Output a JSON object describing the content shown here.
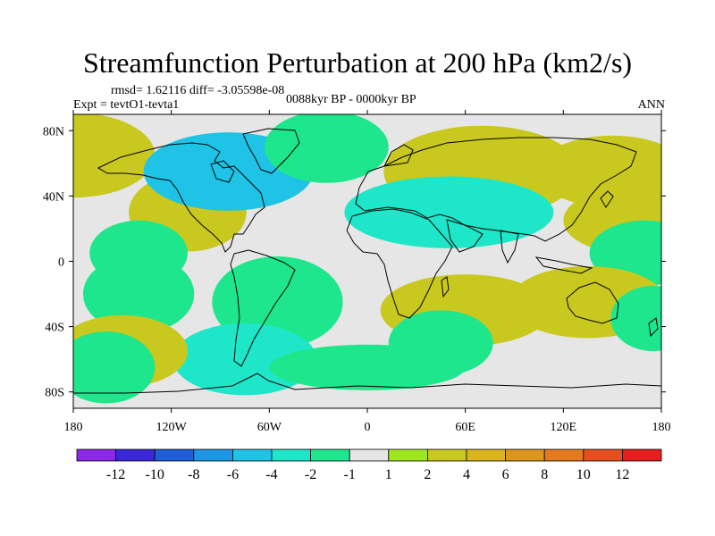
{
  "header": {
    "title": "Streamfunction Perturbation at 200 hPa (km2/s)",
    "stats": "rmsd= 1.62116 diff= -3.05598e-08",
    "experiment": "Expt = tevtO1-tevta1",
    "period": "0088kyr BP - 0000kyr BP",
    "season": "ANN"
  },
  "colors": {
    "palette": [
      "#8c28e6",
      "#3a28d8",
      "#1e5fd8",
      "#1e96e6",
      "#1ec3e6",
      "#1ee6c8",
      "#1ee68c",
      "#e6e6e6",
      "#a0e61e",
      "#c8c81e",
      "#dcb41e",
      "#dc961e",
      "#e6781e",
      "#e6501e",
      "#e61e1e"
    ],
    "land_outline": "#000000"
  },
  "chart_data": {
    "type": "heatmap",
    "title": "Streamfunction Perturbation at 200 hPa (km2/s)",
    "x_axis": {
      "range": [
        -180,
        180
      ],
      "ticks": [
        -180,
        -120,
        -60,
        0,
        60,
        120,
        180
      ],
      "tick_labels": [
        "180",
        "120W",
        "60W",
        "0",
        "60E",
        "120E",
        "180"
      ]
    },
    "y_axis": {
      "range": [
        -90,
        90
      ],
      "ticks": [
        80,
        40,
        0,
        -40,
        -80
      ],
      "tick_labels": [
        "80N",
        "40N",
        "0",
        "40S",
        "80S"
      ]
    },
    "colorbar": {
      "levels": [
        "-12",
        "-10",
        "-8",
        "-6",
        "-4",
        "-2",
        "-1",
        "1",
        "2",
        "4",
        "6",
        "8",
        "10",
        "12"
      ]
    },
    "features": [
      {
        "lon": -110,
        "lat": 30,
        "value": 2.5
      },
      {
        "lon": -180,
        "lat": 65,
        "value": 2.0
      },
      {
        "lon": 70,
        "lat": 55,
        "value": 2.5
      },
      {
        "lon": 150,
        "lat": 55,
        "value": 2.5
      },
      {
        "lon": 160,
        "lat": 25,
        "value": 2.5
      },
      {
        "lon": -85,
        "lat": 55,
        "value": -4.5
      },
      {
        "lon": -25,
        "lat": 70,
        "value": -2.0
      },
      {
        "lon": 50,
        "lat": 30,
        "value": -3.5
      },
      {
        "lon": 170,
        "lat": 5,
        "value": -1.5
      },
      {
        "lon": -140,
        "lat": 5,
        "value": -1.5
      },
      {
        "lon": -140,
        "lat": -20,
        "value": -1.5
      },
      {
        "lon": -55,
        "lat": -25,
        "value": -2.0
      },
      {
        "lon": -75,
        "lat": -60,
        "value": -2.5
      },
      {
        "lon": 60,
        "lat": -30,
        "value": 3.0
      },
      {
        "lon": 45,
        "lat": -50,
        "value": -1.5
      },
      {
        "lon": 135,
        "lat": -25,
        "value": 2.5
      },
      {
        "lon": -150,
        "lat": -55,
        "value": 2.5
      },
      {
        "lon": -160,
        "lat": -65,
        "value": -1.5
      },
      {
        "lon": 175,
        "lat": -35,
        "value": -2.0
      },
      {
        "lon": 0,
        "lat": -65,
        "value": -1.2
      }
    ]
  }
}
